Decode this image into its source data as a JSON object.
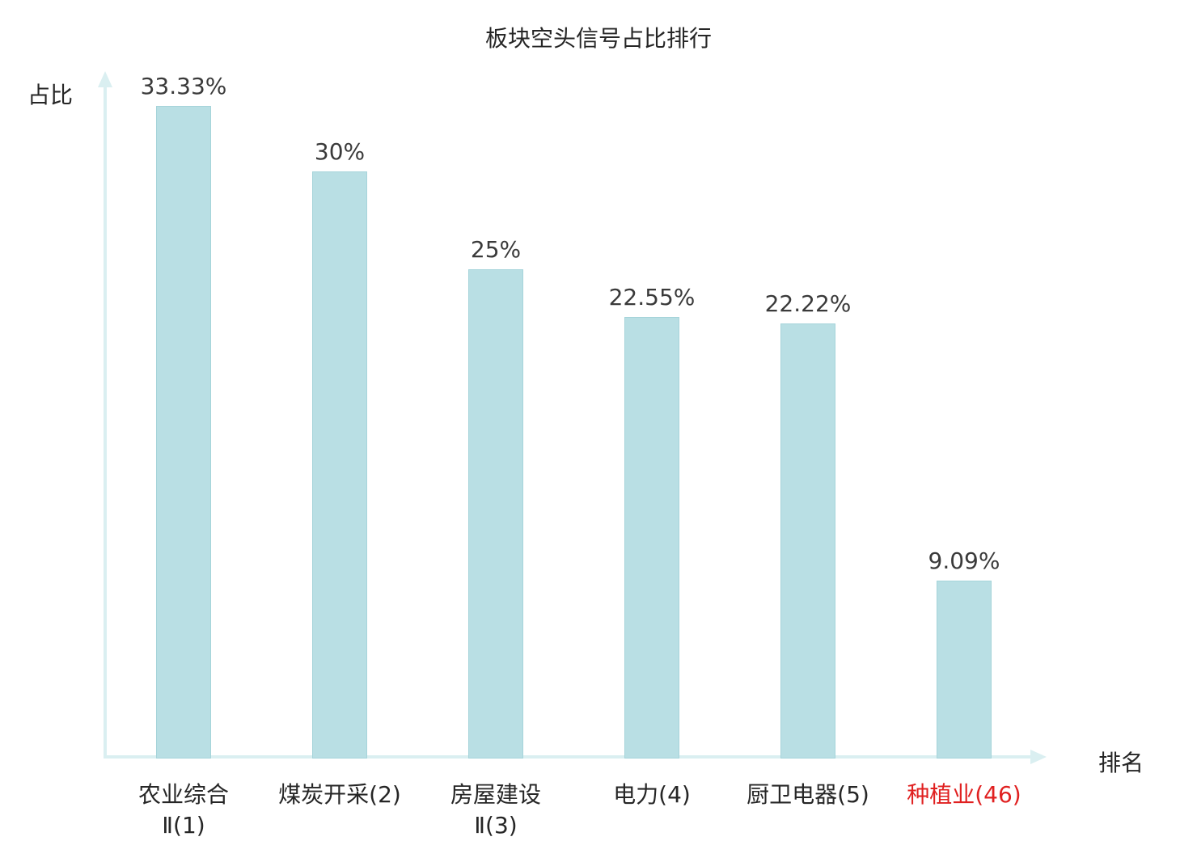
{
  "chart_data": {
    "type": "bar",
    "title": "板块空头信号占比排行",
    "xlabel": "排名",
    "ylabel": "占比",
    "ylim": [
      0,
      33.33
    ],
    "grid": false,
    "legend": "none",
    "categories": [
      "农业综合\nⅡ(1)",
      "煤炭开采(2)",
      "房屋建设\nⅡ(3)",
      "电力(4)",
      "厨卫电器(5)",
      "种植业(46)"
    ],
    "values": [
      33.33,
      30,
      25,
      22.55,
      22.22,
      9.09
    ],
    "value_labels": [
      "33.33%",
      "30%",
      "25%",
      "22.55%",
      "22.22%",
      "9.09%"
    ],
    "highlight_index": 5,
    "colors": {
      "bar_fill": "#b9dfe4",
      "bar_border": "#a6d4da",
      "axis": "#daeff1",
      "text": "#3a3a3a",
      "highlight_text": "#e02020"
    }
  }
}
